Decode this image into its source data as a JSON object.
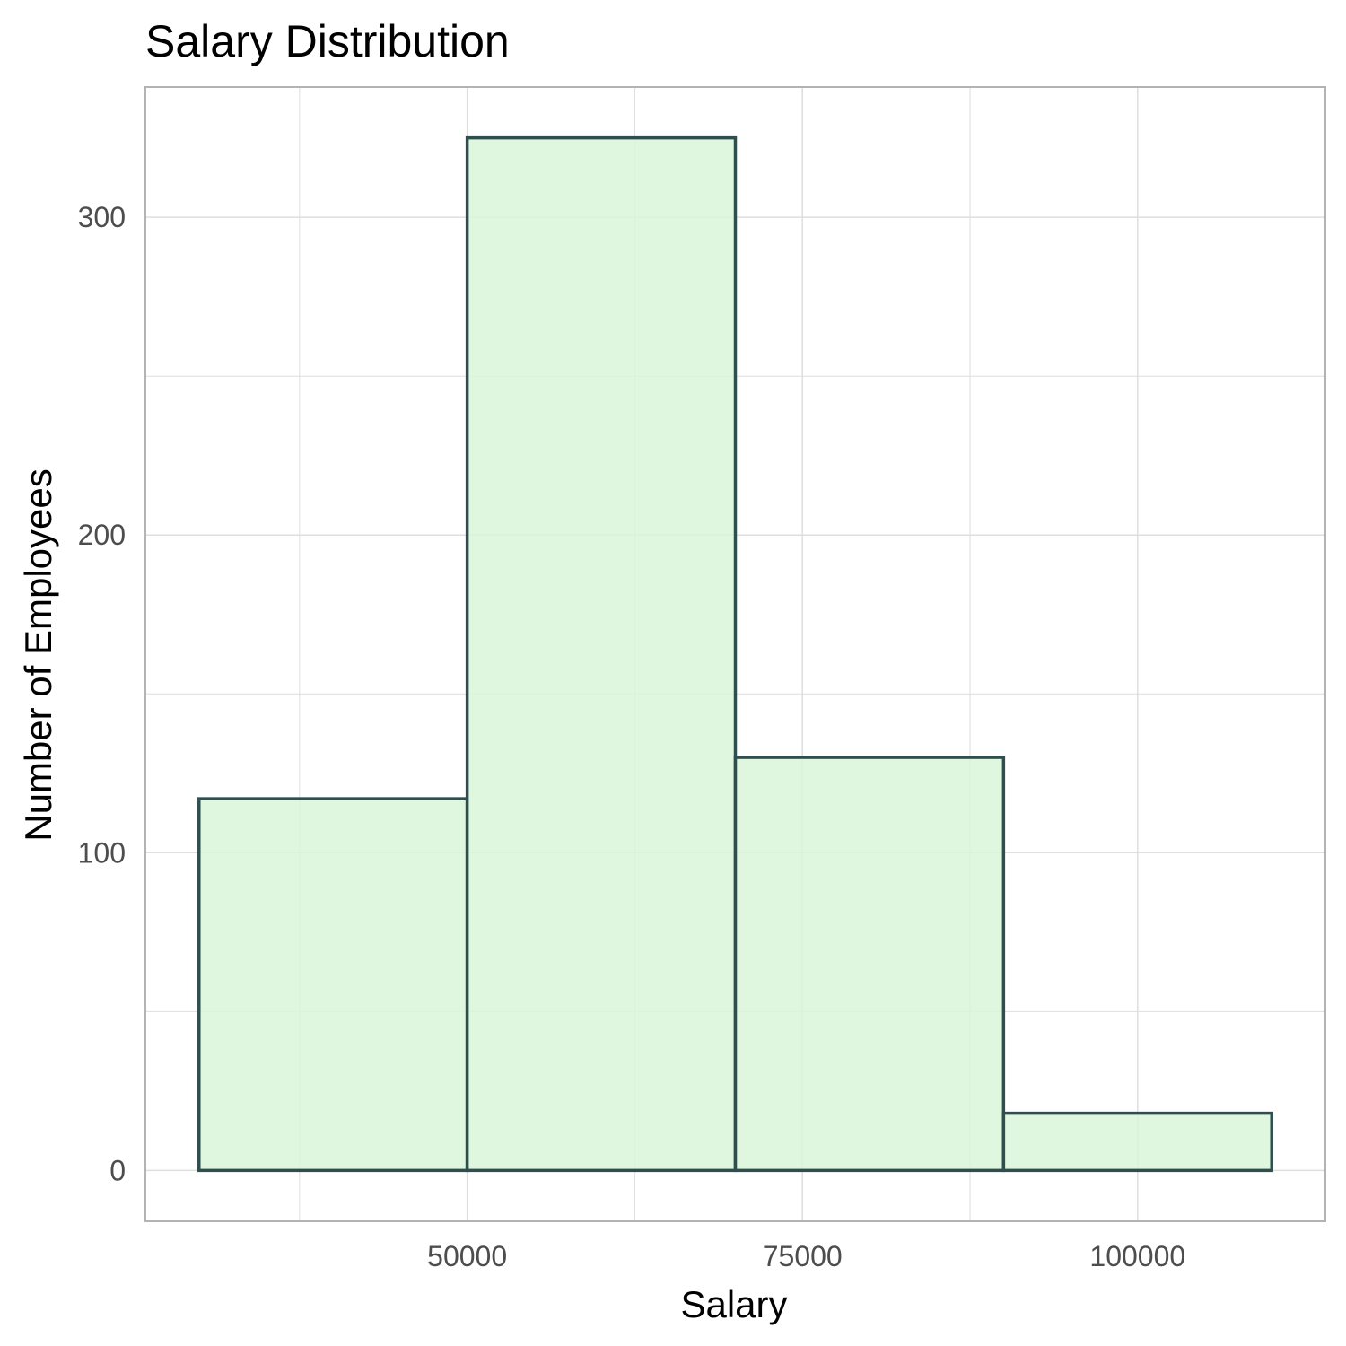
{
  "chart_data": {
    "type": "bar",
    "title": "Salary Distribution",
    "xlabel": "Salary",
    "ylabel": "Number of Employees",
    "bins": [
      {
        "x0": 30000,
        "x1": 50000,
        "count": 117
      },
      {
        "x0": 50000,
        "x1": 70000,
        "count": 325
      },
      {
        "x0": 70000,
        "x1": 90000,
        "count": 130
      },
      {
        "x0": 90000,
        "x1": 110000,
        "count": 18
      }
    ],
    "xlim": [
      26000,
      114000
    ],
    "ylim": [
      -16,
      341
    ],
    "x_ticks": [
      50000,
      75000,
      100000
    ],
    "x_tick_labels": [
      "50000",
      "75000",
      "100000"
    ],
    "x_minor_ticks": [
      37500,
      62500,
      87500
    ],
    "y_ticks": [
      0,
      100,
      200,
      300
    ],
    "y_tick_labels": [
      "0",
      "100",
      "200",
      "300"
    ],
    "y_minor_ticks": [
      50,
      150,
      250
    ],
    "grid": true,
    "colors": {
      "bar_fill": "#d9f5d9",
      "bar_stroke": "#2f4f4f",
      "grid": "#dedede",
      "panel_border": "#b3b3b3"
    }
  }
}
